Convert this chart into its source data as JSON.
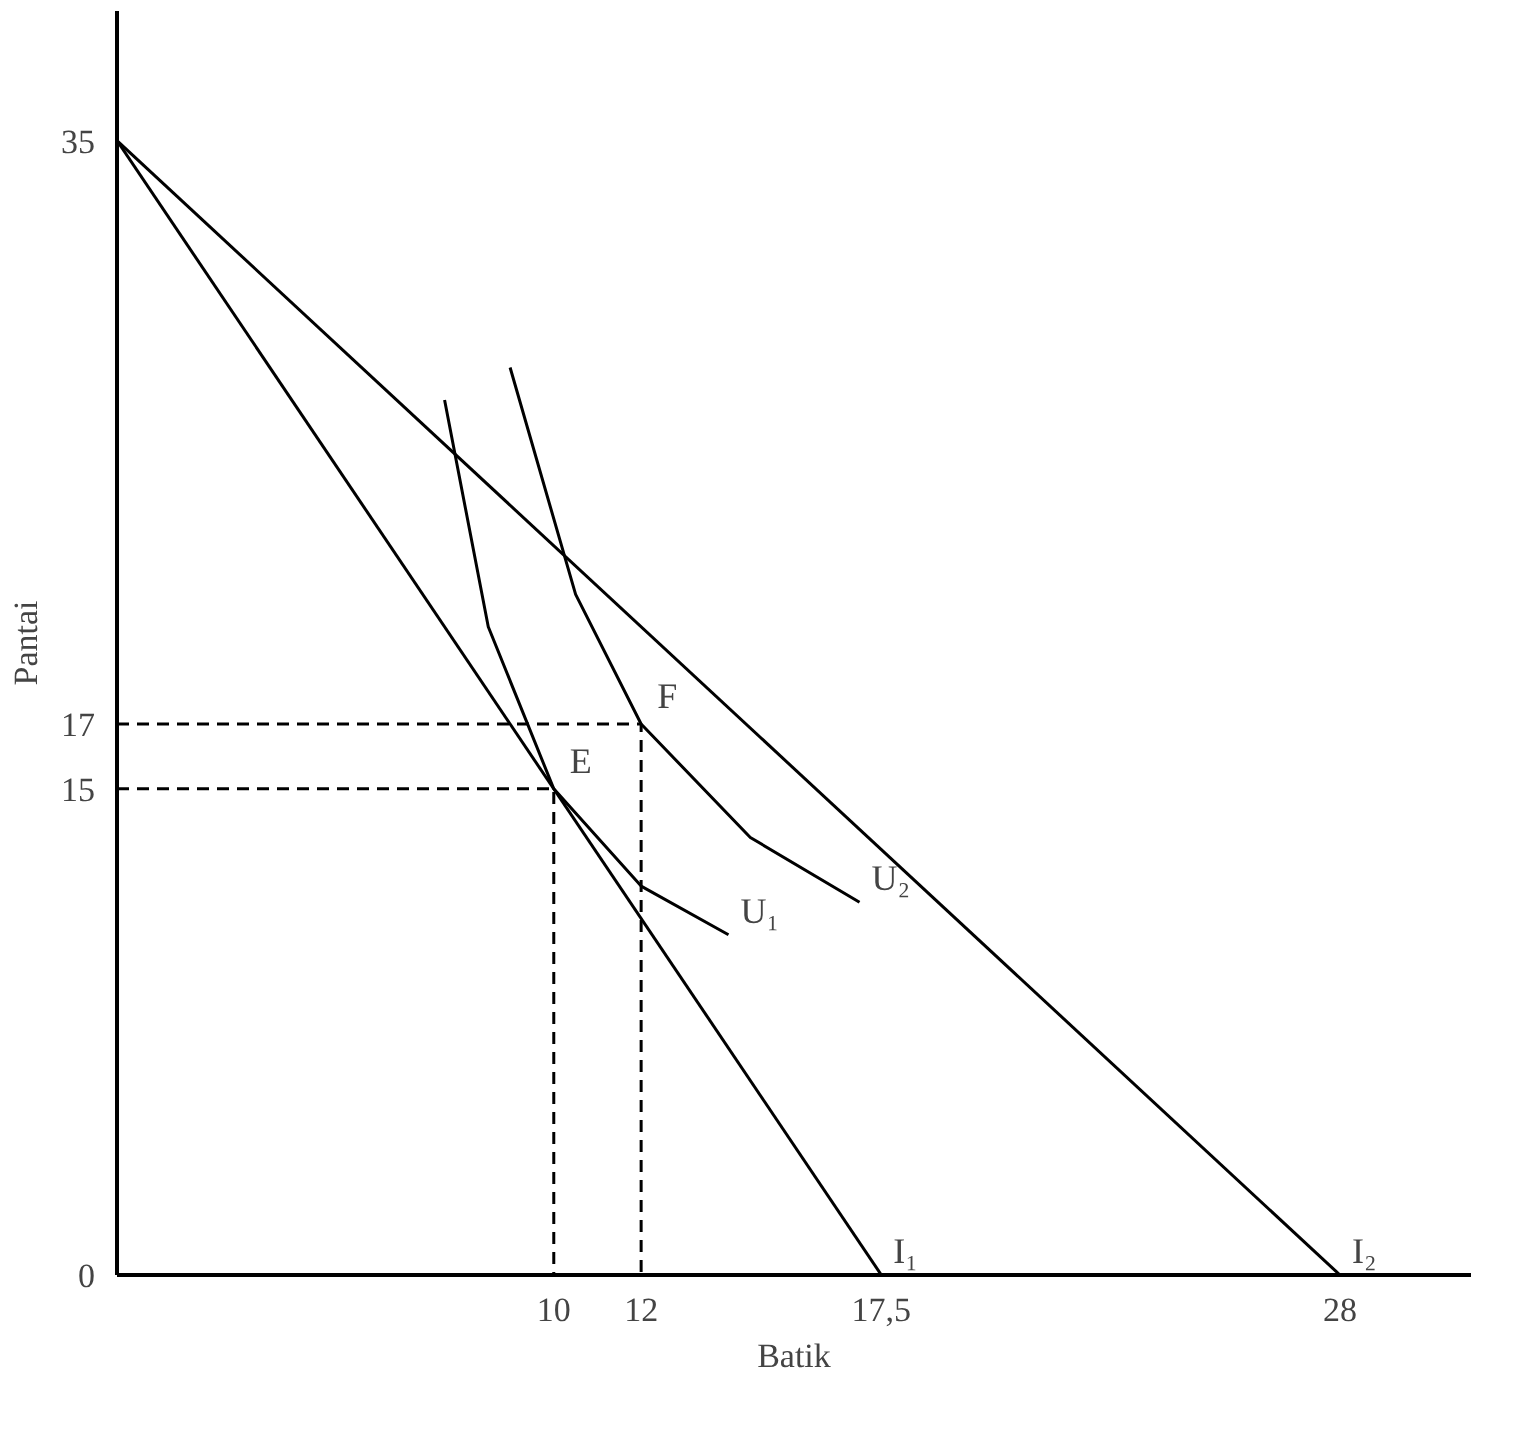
{
  "chart_data": {
    "type": "line",
    "xlabel": "Batik",
    "ylabel": "Pantai",
    "xlim": [
      0,
      31
    ],
    "ylim": [
      0,
      39
    ],
    "xticks": [
      10,
      12,
      {
        "value": 17.5,
        "label": "17,5"
      },
      28
    ],
    "yticks": [
      0,
      15,
      17,
      35
    ],
    "grid": false,
    "marker": "none",
    "series": [
      {
        "name": "I₁",
        "color": "#000000",
        "x": [
          0,
          17.5
        ],
        "values": [
          35,
          0
        ]
      },
      {
        "name": "I₂",
        "color": "#000000",
        "x": [
          0,
          28
        ],
        "values": [
          35,
          0
        ]
      },
      {
        "name": "U₁",
        "color": "#000000",
        "x": [
          7.5,
          8.5,
          10,
          12,
          14
        ],
        "values": [
          27,
          20,
          15,
          12,
          10.5
        ]
      },
      {
        "name": "U₂",
        "color": "#000000",
        "x": [
          9,
          10.5,
          12,
          14.5,
          17
        ],
        "values": [
          28,
          21,
          17,
          13.5,
          11.5
        ]
      },
      {
        "color": "#000000",
        "x": [
          0,
          10,
          10
        ],
        "values": [
          15,
          15,
          0
        ],
        "line_style": "dashed"
      },
      {
        "color": "#000000",
        "x": [
          0,
          12,
          12
        ],
        "values": [
          17,
          17,
          0
        ],
        "line_style": "dashed"
      }
    ],
    "annotations": [
      {
        "text": "E",
        "x": 10,
        "y": 15
      },
      {
        "text": "F",
        "x": 12,
        "y": 17
      }
    ]
  }
}
